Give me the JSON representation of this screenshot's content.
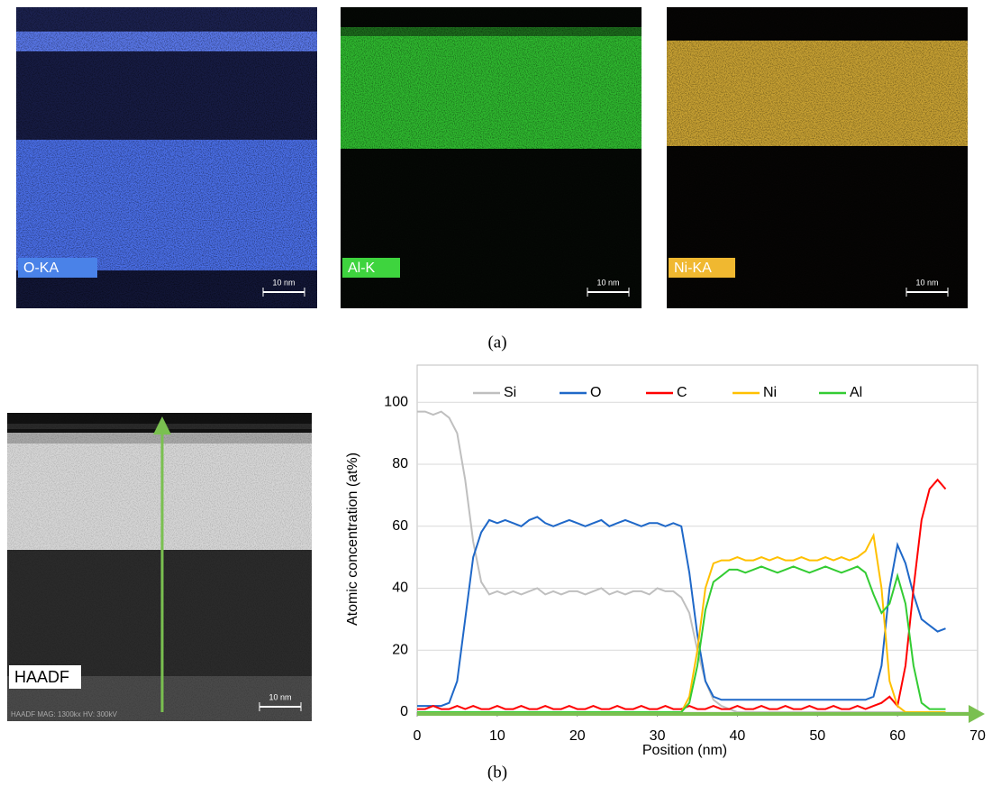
{
  "panel_a": {
    "maps": [
      {
        "label": "O-KA",
        "scale_bar": "10 nm"
      },
      {
        "label": "Al-K",
        "scale_bar": "10 nm"
      },
      {
        "label": "Ni-KA",
        "scale_bar": "10 nm"
      }
    ],
    "caption": "(a)"
  },
  "panel_b": {
    "haadf": {
      "label": "HAADF",
      "info": "HAADF  MAG: 1300kx  HV: 300kV",
      "scale_bar": "10 nm"
    },
    "caption": "(b)"
  },
  "chart_data": {
    "type": "line",
    "x_label": "Position (nm)",
    "y_label": "Atomic concentration (at%)",
    "x": [
      0,
      1,
      2,
      3,
      4,
      5,
      6,
      7,
      8,
      9,
      10,
      11,
      12,
      13,
      14,
      15,
      16,
      17,
      18,
      19,
      20,
      21,
      22,
      23,
      24,
      25,
      26,
      27,
      28,
      29,
      30,
      31,
      32,
      33,
      34,
      35,
      36,
      37,
      38,
      39,
      40,
      41,
      42,
      43,
      44,
      45,
      46,
      47,
      48,
      49,
      50,
      51,
      52,
      53,
      54,
      55,
      56,
      57,
      58,
      59,
      60,
      61,
      62,
      63,
      64,
      65,
      66
    ],
    "series": [
      {
        "name": "Si",
        "color": "#bfbfbf",
        "values": [
          97,
          97,
          96,
          97,
          95,
          90,
          75,
          55,
          42,
          38,
          39,
          38,
          39,
          38,
          39,
          40,
          38,
          39,
          38,
          39,
          39,
          38,
          39,
          40,
          38,
          39,
          38,
          39,
          39,
          38,
          40,
          39,
          39,
          37,
          32,
          20,
          10,
          4,
          2,
          1,
          0,
          0,
          0,
          0,
          0,
          0,
          0,
          0,
          0,
          0,
          0,
          0,
          0,
          0,
          0,
          0,
          0,
          0,
          0,
          0,
          0,
          0,
          0,
          0,
          0,
          0,
          0
        ]
      },
      {
        "name": "O",
        "color": "#1f68c8",
        "values": [
          2,
          2,
          2,
          2,
          3,
          10,
          30,
          50,
          58,
          62,
          61,
          62,
          61,
          60,
          62,
          63,
          61,
          60,
          61,
          62,
          61,
          60,
          61,
          62,
          60,
          61,
          62,
          61,
          60,
          61,
          61,
          60,
          61,
          60,
          45,
          25,
          10,
          5,
          4,
          4,
          4,
          4,
          4,
          4,
          4,
          4,
          4,
          4,
          4,
          4,
          4,
          4,
          4,
          4,
          4,
          4,
          4,
          5,
          15,
          40,
          54,
          48,
          38,
          30,
          28,
          26,
          27
        ]
      },
      {
        "name": "C",
        "color": "#ff0000",
        "values": [
          1,
          1,
          2,
          1,
          1,
          2,
          1,
          2,
          1,
          1,
          2,
          1,
          1,
          2,
          1,
          1,
          2,
          1,
          1,
          2,
          1,
          1,
          2,
          1,
          1,
          2,
          1,
          1,
          2,
          1,
          1,
          2,
          1,
          1,
          2,
          1,
          1,
          2,
          1,
          1,
          2,
          1,
          1,
          2,
          1,
          1,
          2,
          1,
          1,
          2,
          1,
          1,
          2,
          1,
          1,
          2,
          1,
          2,
          3,
          5,
          2,
          15,
          40,
          62,
          72,
          75,
          72
        ]
      },
      {
        "name": "Ni",
        "color": "#ffc000",
        "values": [
          0,
          0,
          0,
          0,
          0,
          0,
          0,
          0,
          0,
          0,
          0,
          0,
          0,
          0,
          0,
          0,
          0,
          0,
          0,
          0,
          0,
          0,
          0,
          0,
          0,
          0,
          0,
          0,
          0,
          0,
          0,
          0,
          0,
          0,
          5,
          20,
          40,
          48,
          49,
          49,
          50,
          49,
          49,
          50,
          49,
          50,
          49,
          49,
          50,
          49,
          49,
          50,
          49,
          50,
          49,
          50,
          52,
          57,
          40,
          10,
          2,
          0,
          0,
          0,
          0,
          0,
          0
        ]
      },
      {
        "name": "Al",
        "color": "#33cc33",
        "values": [
          0,
          0,
          0,
          0,
          0,
          0,
          0,
          0,
          0,
          0,
          0,
          0,
          0,
          0,
          0,
          0,
          0,
          0,
          0,
          0,
          0,
          0,
          0,
          0,
          0,
          0,
          0,
          0,
          0,
          0,
          0,
          0,
          0,
          0,
          3,
          15,
          33,
          42,
          44,
          46,
          46,
          45,
          46,
          47,
          46,
          45,
          46,
          47,
          46,
          45,
          46,
          47,
          46,
          45,
          46,
          47,
          45,
          38,
          32,
          35,
          44,
          35,
          15,
          3,
          1,
          1,
          1
        ]
      }
    ],
    "xlim": [
      0,
      70
    ],
    "xticks": [
      0,
      10,
      20,
      30,
      40,
      50,
      60,
      70
    ],
    "ylim": [
      0,
      112
    ],
    "yticks": [
      0,
      20,
      40,
      60,
      80,
      100
    ],
    "grid": true,
    "legend": "top"
  }
}
